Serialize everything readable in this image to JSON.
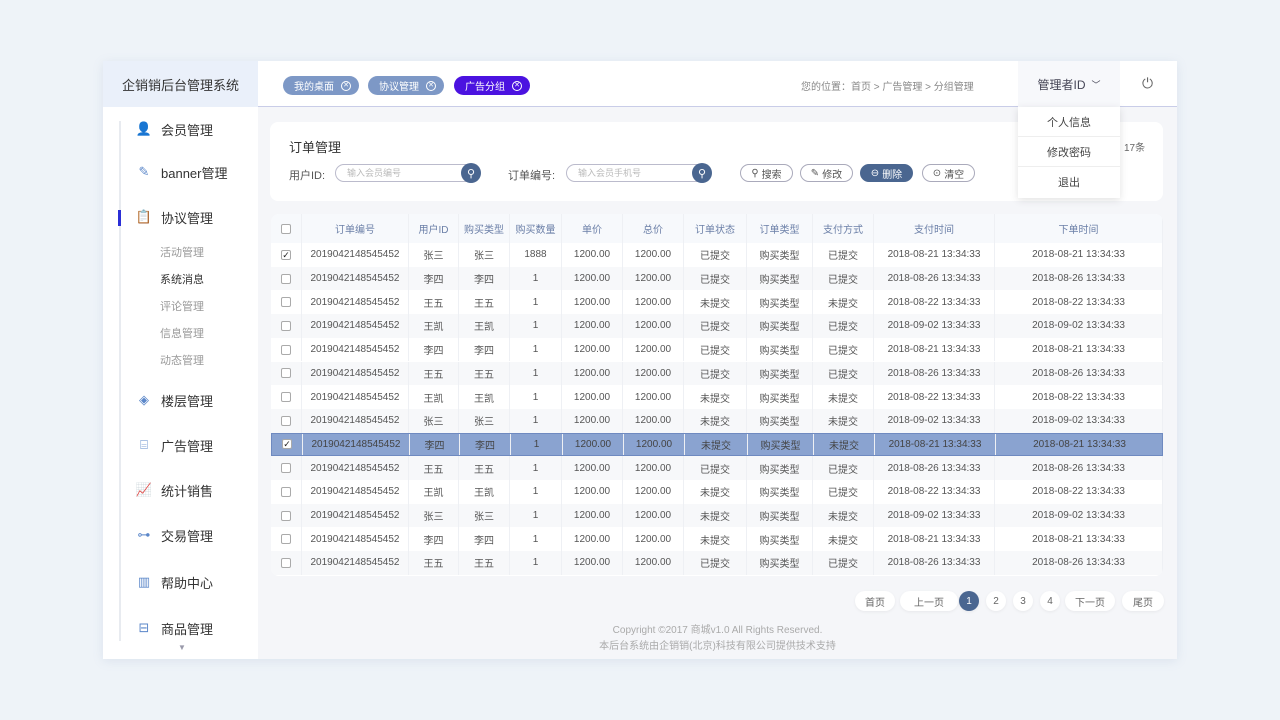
{
  "app": {
    "title": "企销销后台管理系统"
  },
  "tabs": [
    {
      "label": "我的桌面"
    },
    {
      "label": "协议管理"
    },
    {
      "label": "广告分组",
      "active": true
    }
  ],
  "breadcrumb": "您的位置：首页 > 广告管理 > 分组管理",
  "admin": {
    "label": "管理者ID",
    "menu": [
      "个人信息",
      "修改密码",
      "退出"
    ]
  },
  "sidebar": {
    "items": [
      {
        "label": "会员管理",
        "icon": "user-icon"
      },
      {
        "label": "banner管理",
        "icon": "edit-icon"
      },
      {
        "label": "协议管理",
        "icon": "clipboard-icon",
        "active": true
      },
      {
        "label": "楼层管理",
        "icon": "layers-icon"
      },
      {
        "label": "广告管理",
        "icon": "presentation-icon"
      },
      {
        "label": "统计销售",
        "icon": "chart-up-icon"
      },
      {
        "label": "交易管理",
        "icon": "hierarchy-icon"
      },
      {
        "label": "帮助中心",
        "icon": "bar-chart-icon"
      },
      {
        "label": "商品管理",
        "icon": "store-icon"
      }
    ],
    "subitems": [
      "活动管理",
      "系统消息",
      "评论管理",
      "信息管理",
      "动态管理"
    ],
    "active_sub": "系统消息"
  },
  "filter": {
    "title": "订单管理",
    "count": "17条",
    "user_label": "用户ID:",
    "user_placeholder": "输入会员编号",
    "order_label": "订单编号:",
    "order_placeholder": "输入会员手机号",
    "buttons": [
      "搜索",
      "修改",
      "删除",
      "清空"
    ]
  },
  "table": {
    "columns": [
      "订单编号",
      "用户ID",
      "购买类型",
      "购买数量",
      "单价",
      "总价",
      "订单状态",
      "订单类型",
      "支付方式",
      "支付时间",
      "下单时间"
    ],
    "rows": [
      {
        "checked": true,
        "c": [
          "2019042148545452",
          "张三",
          "张三",
          "1888",
          "1200.00",
          "1200.00",
          "已提交",
          "购买类型",
          "已提交",
          "2018-08-21  13:34:33",
          "2018-08-21  13:34:33"
        ]
      },
      {
        "checked": false,
        "c": [
          "2019042148545452",
          "李四",
          "李四",
          "1",
          "1200.00",
          "1200.00",
          "已提交",
          "购买类型",
          "已提交",
          "2018-08-26  13:34:33",
          "2018-08-26  13:34:33"
        ]
      },
      {
        "checked": false,
        "c": [
          "2019042148545452",
          "王五",
          "王五",
          "1",
          "1200.00",
          "1200.00",
          "未提交",
          "购买类型",
          "未提交",
          "2018-08-22  13:34:33",
          "2018-08-22  13:34:33"
        ]
      },
      {
        "checked": false,
        "c": [
          "2019042148545452",
          "王凯",
          "王凯",
          "1",
          "1200.00",
          "1200.00",
          "已提交",
          "购买类型",
          "已提交",
          "2018-09-02  13:34:33",
          "2018-09-02  13:34:33"
        ]
      },
      {
        "checked": false,
        "c": [
          "2019042148545452",
          "李四",
          "李四",
          "1",
          "1200.00",
          "1200.00",
          "已提交",
          "购买类型",
          "已提交",
          "2018-08-21  13:34:33",
          "2018-08-21  13:34:33"
        ]
      },
      {
        "checked": false,
        "c": [
          "2019042148545452",
          "王五",
          "王五",
          "1",
          "1200.00",
          "1200.00",
          "已提交",
          "购买类型",
          "已提交",
          "2018-08-26  13:34:33",
          "2018-08-26  13:34:33"
        ]
      },
      {
        "checked": false,
        "c": [
          "2019042148545452",
          "王凯",
          "王凯",
          "1",
          "1200.00",
          "1200.00",
          "未提交",
          "购买类型",
          "未提交",
          "2018-08-22  13:34:33",
          "2018-08-22  13:34:33"
        ]
      },
      {
        "checked": false,
        "c": [
          "2019042148545452",
          "张三",
          "张三",
          "1",
          "1200.00",
          "1200.00",
          "未提交",
          "购买类型",
          "未提交",
          "2018-09-02  13:34:33",
          "2018-09-02  13:34:33"
        ]
      },
      {
        "checked": true,
        "selected": true,
        "c": [
          "2019042148545452",
          "李四",
          "李四",
          "1",
          "1200.00",
          "1200.00",
          "未提交",
          "购买类型",
          "未提交",
          "2018-08-21  13:34:33",
          "2018-08-21  13:34:33"
        ]
      },
      {
        "checked": false,
        "c": [
          "2019042148545452",
          "王五",
          "王五",
          "1",
          "1200.00",
          "1200.00",
          "已提交",
          "购买类型",
          "已提交",
          "2018-08-26  13:34:33",
          "2018-08-26  13:34:33"
        ]
      },
      {
        "checked": false,
        "c": [
          "2019042148545452",
          "王凯",
          "王凯",
          "1",
          "1200.00",
          "1200.00",
          "未提交",
          "购买类型",
          "已提交",
          "2018-08-22  13:34:33",
          "2018-08-22  13:34:33"
        ]
      },
      {
        "checked": false,
        "c": [
          "2019042148545452",
          "张三",
          "张三",
          "1",
          "1200.00",
          "1200.00",
          "未提交",
          "购买类型",
          "未提交",
          "2018-09-02  13:34:33",
          "2018-09-02  13:34:33"
        ]
      },
      {
        "checked": false,
        "c": [
          "2019042148545452",
          "李四",
          "李四",
          "1",
          "1200.00",
          "1200.00",
          "未提交",
          "购买类型",
          "未提交",
          "2018-08-21  13:34:33",
          "2018-08-21  13:34:33"
        ]
      },
      {
        "checked": false,
        "c": [
          "2019042148545452",
          "王五",
          "王五",
          "1",
          "1200.00",
          "1200.00",
          "已提交",
          "购买类型",
          "已提交",
          "2018-08-26  13:34:33",
          "2018-08-26  13:34:33"
        ]
      }
    ]
  },
  "pagination": {
    "first": "首页",
    "prev": "上一页",
    "pages": [
      "1",
      "2",
      "3",
      "4"
    ],
    "current": "1",
    "next": "下一页",
    "last": "尾页"
  },
  "footer": {
    "copyright": "Copyright ©2017 商城v1.0 All Rights Reserved.",
    "support": "本后台系统由企销销(北京)科技有限公司提供技术支持"
  },
  "colors": {
    "accent": "#4b12e0",
    "primary": "#4a6690",
    "tab": "#7d98c6",
    "selected_row": "#8aa3d0"
  }
}
